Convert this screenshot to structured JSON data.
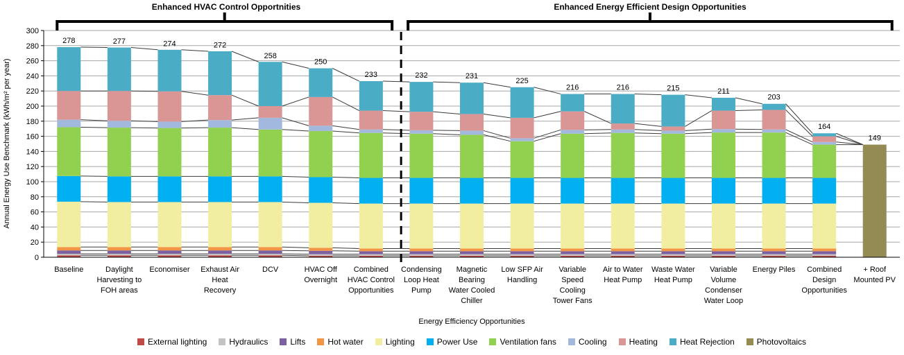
{
  "group_headers": [
    {
      "label": "Enhanced HVAC Control Opportnities",
      "first_bar": 0,
      "last_bar": 6
    },
    {
      "label": "Enhanced Energy Efficient Design Opportunities",
      "first_bar": 7,
      "last_bar": 16
    }
  ],
  "y_axis": {
    "title": "Annual Energy Use Benchmark (kWh/m² per year)",
    "ticks": [
      0,
      20,
      40,
      60,
      80,
      100,
      120,
      140,
      160,
      180,
      200,
      220,
      240,
      260,
      280,
      300
    ],
    "min": 0,
    "max": 300
  },
  "x_axis": {
    "title": "Energy Efficiency Opportunities"
  },
  "divider": {
    "style": "dashed",
    "after_category_index": 6,
    "color": "#000000"
  },
  "colors": {
    "gridline": "#A6A6A6",
    "axis": "#000000",
    "series_line": "#3A3A3A"
  },
  "chart_data": {
    "type": "bar",
    "stacked": true,
    "grid": true,
    "legend_position": "bottom",
    "series_lines": true,
    "ylim": [
      0,
      300
    ],
    "title": "",
    "xlabel": "Energy Efficiency Opportunities",
    "ylabel": "Annual Energy Use Benchmark (kWh/m² per year)",
    "categories": [
      "Baseline",
      "Daylight Harvesting to FOH areas",
      "Economiser",
      "Exhaust Air Heat Recovery",
      "DCV",
      "HVAC Off Overnight",
      "Combined HVAC Control Opportunities",
      "Condensing Loop Heat Pump",
      "Magnetic Bearing Water Cooled Chiller",
      "Low SFP Air Handling",
      "Variable Speed Cooling Tower Fans",
      "Air to Water Heat Pump",
      "Waste Water Heat Pump",
      "Variable Volume Condenser Water Loop",
      "Energy Piles",
      "Combined Design Opportunities",
      "+ Roof Mounted PV"
    ],
    "category_label_lines": [
      [
        "Baseline"
      ],
      [
        "Daylight",
        "Harvesting to",
        "FOH areas"
      ],
      [
        "Economiser"
      ],
      [
        "Exhaust Air",
        "Heat",
        "Recovery"
      ],
      [
        "DCV"
      ],
      [
        "HVAC Off",
        "Overnight"
      ],
      [
        "Combined",
        "HVAC Control",
        "Opportunities"
      ],
      [
        "Condensing",
        "Loop Heat",
        "Pump"
      ],
      [
        "Magnetic",
        "Bearing",
        "Water Cooled",
        "Chiller"
      ],
      [
        "Low SFP Air",
        "Handling"
      ],
      [
        "Variable",
        "Speed",
        "Cooling",
        "Tower Fans"
      ],
      [
        "Air to Water",
        "Heat Pump"
      ],
      [
        "Waste Water",
        "Heat Pump"
      ],
      [
        "Variable",
        "Volume",
        "Condenser",
        "Water Loop"
      ],
      [
        "Energy Piles"
      ],
      [
        "Combined",
        "Design",
        "Opportunities"
      ],
      [
        "+ Roof",
        "Mounted PV"
      ]
    ],
    "totals": [
      278,
      277,
      274,
      272,
      258,
      250,
      233,
      232,
      231,
      225,
      216,
      216,
      215,
      211,
      203,
      164,
      149
    ],
    "series": [
      {
        "name": "External lighting",
        "color": "#BE4B48",
        "values": [
          2.5,
          2.5,
          2.5,
          2.5,
          2.5,
          2,
          2,
          2,
          2,
          2,
          2,
          2,
          2,
          2,
          2,
          2,
          0
        ]
      },
      {
        "name": "Hydraulics",
        "color": "#C3C3C3",
        "values": [
          2,
          2,
          2,
          2,
          2,
          2,
          2,
          2,
          2,
          2,
          2,
          2,
          2,
          2,
          2,
          2,
          0
        ]
      },
      {
        "name": "Lifts",
        "color": "#7C61A1",
        "values": [
          4.5,
          4.5,
          4.5,
          4.5,
          4.5,
          4.5,
          4,
          4,
          4,
          4,
          4,
          4,
          4,
          4,
          4,
          4,
          0
        ]
      },
      {
        "name": "Hot water",
        "color": "#F29544",
        "values": [
          4.5,
          4.5,
          4.5,
          4.5,
          4.5,
          4,
          3.5,
          3.5,
          3.5,
          3.5,
          3.5,
          3.5,
          3.5,
          3.5,
          3.5,
          3.5,
          0
        ]
      },
      {
        "name": "Lighting",
        "color": "#F1EEA2",
        "values": [
          60,
          59.5,
          59.5,
          59.5,
          59.5,
          59.5,
          59.5,
          59.5,
          59.5,
          59.5,
          59.5,
          59.5,
          59.5,
          59.5,
          59.5,
          59.5,
          0
        ]
      },
      {
        "name": "Power Use",
        "color": "#00B0F0",
        "values": [
          34,
          34,
          34,
          34,
          34,
          34,
          34,
          34,
          34,
          34,
          34,
          34,
          34,
          34,
          34,
          34,
          0
        ]
      },
      {
        "name": "Ventilation fans",
        "color": "#92D050",
        "values": [
          64.5,
          64.5,
          64,
          64.5,
          62,
          61,
          59.5,
          58.5,
          57,
          48.5,
          58.5,
          59.5,
          58.5,
          60,
          60,
          44,
          0
        ]
      },
      {
        "name": "Cooling",
        "color": "#A2B8DD",
        "values": [
          10,
          9,
          8.5,
          10,
          15.5,
          7,
          4.5,
          4.5,
          5.5,
          4,
          5,
          4.5,
          4,
          4.5,
          4,
          3.5,
          0
        ]
      },
      {
        "name": "Heating",
        "color": "#D99694",
        "values": [
          38,
          39.5,
          40,
          33,
          15.5,
          38,
          25,
          24.5,
          22,
          27,
          24.5,
          8,
          5.5,
          24.5,
          26,
          7.5,
          0
        ]
      },
      {
        "name": "Heat Rejection",
        "color": "#4BACC6",
        "values": [
          58,
          57.5,
          55,
          58,
          58.5,
          38,
          39,
          39.5,
          41.5,
          40.5,
          23,
          39,
          42,
          17,
          8,
          4,
          0
        ]
      },
      {
        "name": "Photovoltaics",
        "color": "#948A54",
        "values": [
          0,
          0,
          0,
          0,
          0,
          0,
          0,
          0,
          0,
          0,
          0,
          0,
          0,
          0,
          0,
          0,
          149
        ]
      }
    ]
  }
}
